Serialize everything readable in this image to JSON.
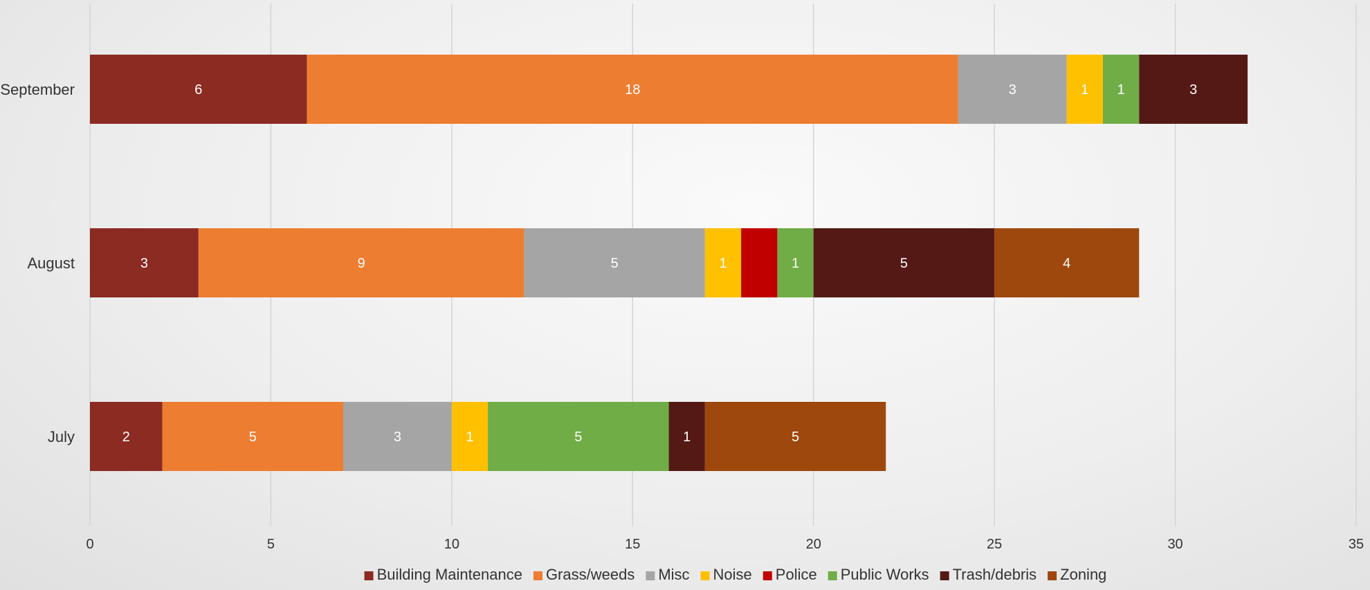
{
  "chart_data": {
    "type": "bar",
    "orientation": "horizontal",
    "stacked": true,
    "title": "",
    "xlabel": "",
    "ylabel": "",
    "categories": [
      "September",
      "August",
      "July"
    ],
    "xlim": [
      0,
      35
    ],
    "x_ticks": [
      0,
      5,
      10,
      15,
      20,
      25,
      30,
      35
    ],
    "grid": true,
    "legend_position": "bottom",
    "series": [
      {
        "name": "Building Maintenance",
        "color": "#8B2B22",
        "values": [
          6,
          3,
          2
        ]
      },
      {
        "name": "Grass/weeds",
        "color": "#ED7D31",
        "values": [
          18,
          9,
          5
        ]
      },
      {
        "name": "Misc",
        "color": "#A5A5A5",
        "values": [
          3,
          5,
          3
        ]
      },
      {
        "name": "Noise",
        "color": "#FFC000",
        "values": [
          1,
          1,
          1
        ]
      },
      {
        "name": "Police",
        "color": "#C00000",
        "values": [
          0,
          1,
          0
        ]
      },
      {
        "name": "Public Works",
        "color": "#70AD47",
        "values": [
          1,
          1,
          5
        ]
      },
      {
        "name": "Trash/debris",
        "color": "#541915",
        "values": [
          3,
          5,
          1
        ]
      },
      {
        "name": "Zoning",
        "color": "#9E480E",
        "values": [
          0,
          4,
          5
        ]
      }
    ],
    "data_labels": [
      [
        "6",
        "18",
        "3",
        "1",
        "",
        "1",
        "3",
        ""
      ],
      [
        "3",
        "9",
        "5",
        "1",
        "",
        "1",
        "5",
        "4"
      ],
      [
        "2",
        "5",
        "3",
        "1",
        "",
        "5",
        "1",
        "5"
      ]
    ]
  }
}
